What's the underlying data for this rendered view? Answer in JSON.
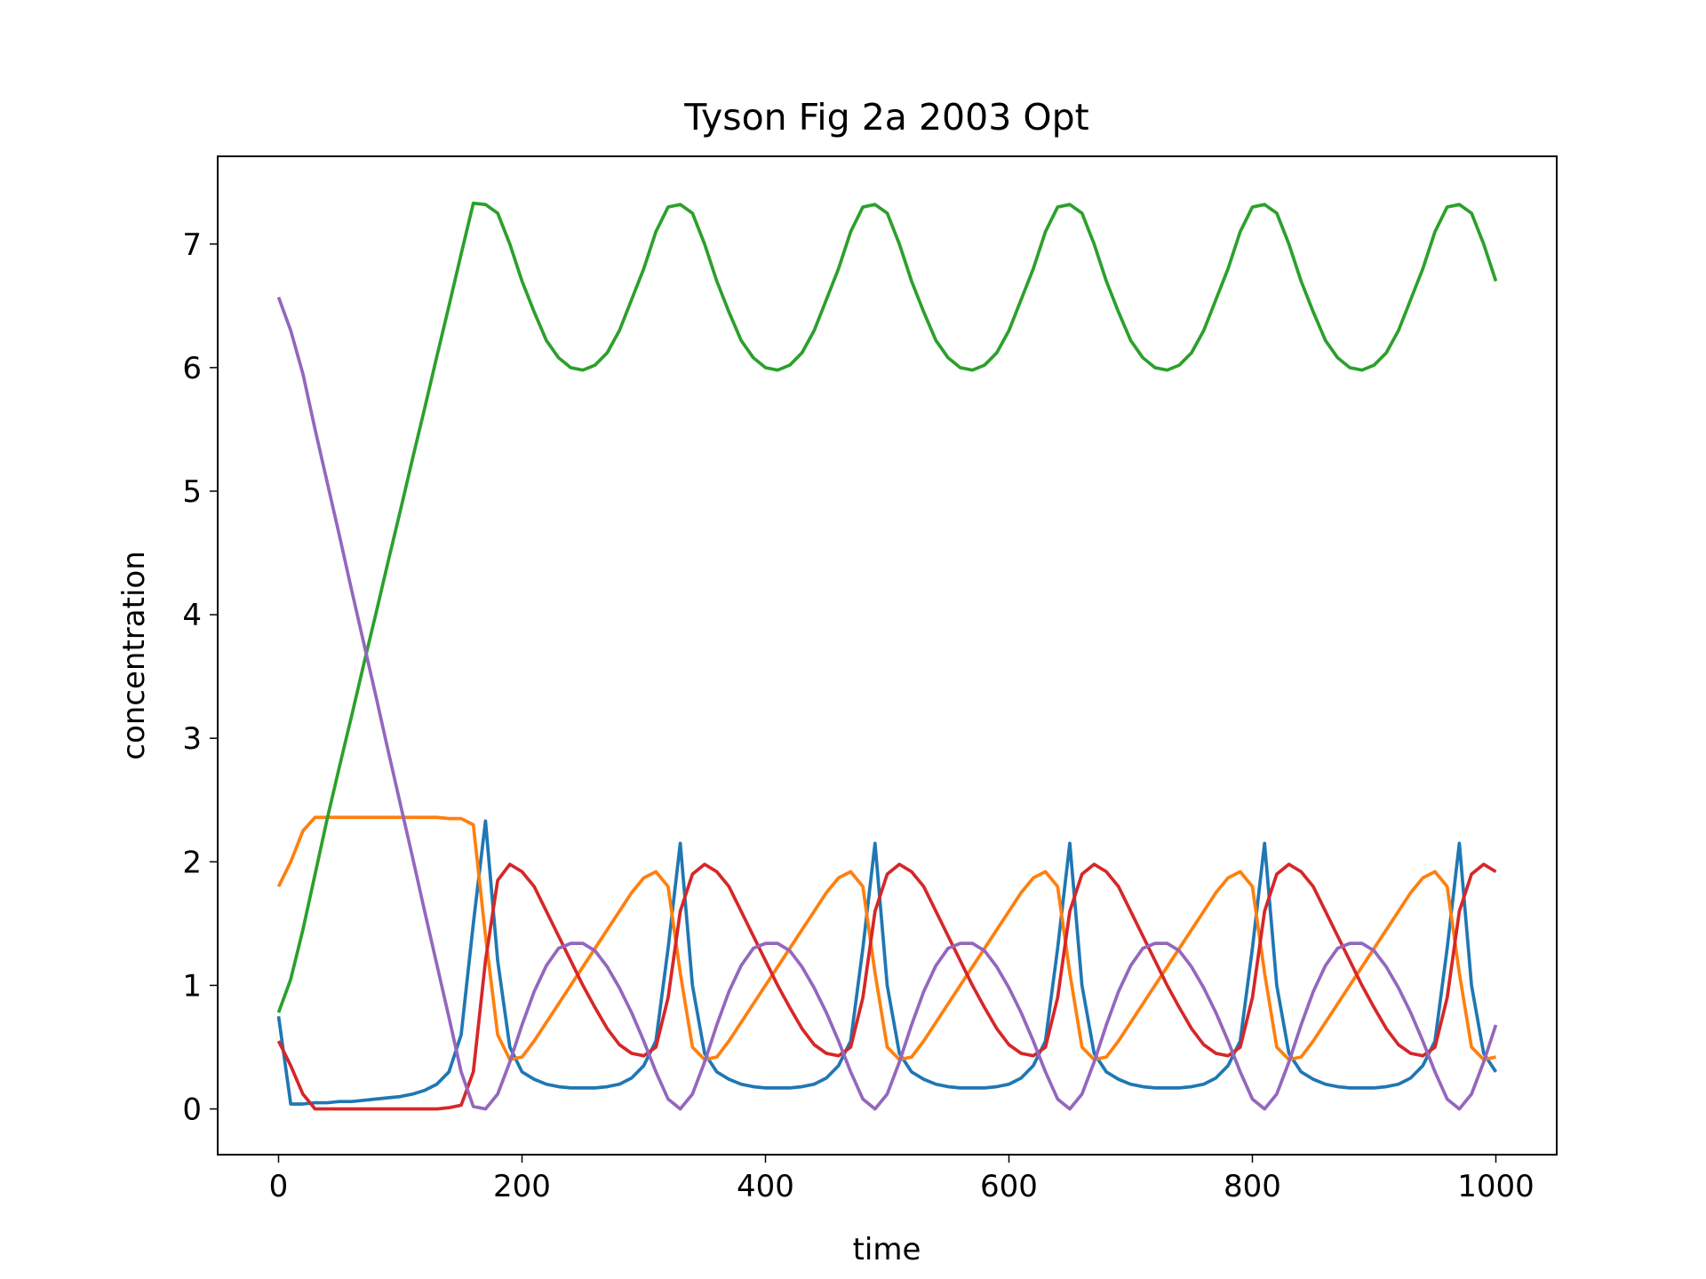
{
  "chart_data": {
    "type": "line",
    "title": "Tyson Fig 2a 2003 Opt",
    "xlabel": "time",
    "ylabel": "concentration",
    "x": [
      0,
      10,
      20,
      30,
      40,
      50,
      60,
      70,
      80,
      90,
      100,
      110,
      120,
      130,
      140,
      150,
      160,
      170,
      180,
      190,
      200,
      210,
      220,
      230,
      240,
      250,
      260,
      270,
      280,
      290,
      300,
      310,
      320,
      330,
      340,
      350,
      360,
      370,
      380,
      390,
      400,
      410,
      420,
      430,
      440,
      450,
      460,
      470,
      480,
      490,
      500,
      510,
      520,
      530,
      540,
      550,
      560,
      570,
      580,
      590,
      600,
      610,
      620,
      630,
      640,
      650,
      660,
      670,
      680,
      690,
      700,
      710,
      720,
      730,
      740,
      750,
      760,
      770,
      780,
      790,
      800,
      810,
      820,
      830,
      840,
      850,
      860,
      870,
      880,
      890,
      900,
      910,
      920,
      930,
      940,
      950,
      960,
      970,
      980,
      990,
      1000
    ],
    "series": [
      {
        "color": "#1f77b4",
        "values": [
          0.75,
          0.04,
          0.04,
          0.05,
          0.05,
          0.06,
          0.06,
          0.07,
          0.08,
          0.09,
          0.1,
          0.12,
          0.15,
          0.2,
          0.3,
          0.6,
          1.5,
          2.33,
          1.2,
          0.5,
          0.3,
          0.24,
          0.2,
          0.18,
          0.17,
          0.17,
          0.17,
          0.18,
          0.2,
          0.25,
          0.35,
          0.55,
          1.3,
          2.15,
          1.0,
          0.45,
          0.3,
          0.24,
          0.2,
          0.18,
          0.17,
          0.17,
          0.17,
          0.18,
          0.2,
          0.25,
          0.35,
          0.55,
          1.3,
          2.15,
          1.0,
          0.45,
          0.3,
          0.24,
          0.2,
          0.18,
          0.17,
          0.17,
          0.17,
          0.18,
          0.2,
          0.25,
          0.35,
          0.55,
          1.3,
          2.15,
          1.0,
          0.45,
          0.3,
          0.24,
          0.2,
          0.18,
          0.17,
          0.17,
          0.17,
          0.18,
          0.2,
          0.25,
          0.35,
          0.55,
          1.3,
          2.15,
          1.0,
          0.45,
          0.3,
          0.24,
          0.2,
          0.18,
          0.17,
          0.17,
          0.17,
          0.18,
          0.2,
          0.25,
          0.35,
          0.55,
          1.3,
          2.15,
          1.0,
          0.45,
          0.3
        ]
      },
      {
        "color": "#ff7f0e",
        "values": [
          1.8,
          2.0,
          2.25,
          2.36,
          2.36,
          2.36,
          2.36,
          2.36,
          2.36,
          2.36,
          2.36,
          2.36,
          2.36,
          2.36,
          2.35,
          2.35,
          2.3,
          1.4,
          0.6,
          0.4,
          0.42,
          0.55,
          0.7,
          0.85,
          1.0,
          1.15,
          1.3,
          1.45,
          1.6,
          1.75,
          1.87,
          1.92,
          1.8,
          1.1,
          0.5,
          0.4,
          0.42,
          0.55,
          0.7,
          0.85,
          1.0,
          1.15,
          1.3,
          1.45,
          1.6,
          1.75,
          1.87,
          1.92,
          1.8,
          1.1,
          0.5,
          0.4,
          0.42,
          0.55,
          0.7,
          0.85,
          1.0,
          1.15,
          1.3,
          1.45,
          1.6,
          1.75,
          1.87,
          1.92,
          1.8,
          1.1,
          0.5,
          0.4,
          0.42,
          0.55,
          0.7,
          0.85,
          1.0,
          1.15,
          1.3,
          1.45,
          1.6,
          1.75,
          1.87,
          1.92,
          1.8,
          1.1,
          0.5,
          0.4,
          0.42,
          0.55,
          0.7,
          0.85,
          1.0,
          1.15,
          1.3,
          1.45,
          1.6,
          1.75,
          1.87,
          1.92,
          1.8,
          1.1,
          0.5,
          0.4,
          0.42
        ]
      },
      {
        "color": "#2ca02c",
        "values": [
          0.78,
          1.05,
          1.45,
          1.9,
          2.35,
          2.77,
          3.18,
          3.6,
          4.01,
          4.43,
          4.84,
          5.26,
          5.67,
          6.09,
          6.5,
          6.92,
          7.33,
          7.32,
          7.25,
          7.0,
          6.7,
          6.45,
          6.22,
          6.08,
          6.0,
          5.98,
          6.02,
          6.12,
          6.3,
          6.55,
          6.8,
          7.1,
          7.3,
          7.32,
          7.25,
          7.0,
          6.7,
          6.45,
          6.22,
          6.08,
          6.0,
          5.98,
          6.02,
          6.12,
          6.3,
          6.55,
          6.8,
          7.1,
          7.3,
          7.32,
          7.25,
          7.0,
          6.7,
          6.45,
          6.22,
          6.08,
          6.0,
          5.98,
          6.02,
          6.12,
          6.3,
          6.55,
          6.8,
          7.1,
          7.3,
          7.32,
          7.25,
          7.0,
          6.7,
          6.45,
          6.22,
          6.08,
          6.0,
          5.98,
          6.02,
          6.12,
          6.3,
          6.55,
          6.8,
          7.1,
          7.3,
          7.32,
          7.25,
          7.0,
          6.7,
          6.45,
          6.22,
          6.08,
          6.0,
          5.98,
          6.02,
          6.12,
          6.3,
          6.55,
          6.8,
          7.1,
          7.3,
          7.32,
          7.25,
          7.0,
          6.7
        ]
      },
      {
        "color": "#d62728",
        "values": [
          0.55,
          0.35,
          0.12,
          0.0,
          0.0,
          0.0,
          0.0,
          0.0,
          0.0,
          0.0,
          0.0,
          0.0,
          0.0,
          0.0,
          0.01,
          0.03,
          0.3,
          1.2,
          1.85,
          1.98,
          1.92,
          1.8,
          1.6,
          1.4,
          1.2,
          1.0,
          0.82,
          0.65,
          0.52,
          0.45,
          0.43,
          0.5,
          0.9,
          1.6,
          1.9,
          1.98,
          1.92,
          1.8,
          1.6,
          1.4,
          1.2,
          1.0,
          0.82,
          0.65,
          0.52,
          0.45,
          0.43,
          0.5,
          0.9,
          1.6,
          1.9,
          1.98,
          1.92,
          1.8,
          1.6,
          1.4,
          1.2,
          1.0,
          0.82,
          0.65,
          0.52,
          0.45,
          0.43,
          0.5,
          0.9,
          1.6,
          1.9,
          1.98,
          1.92,
          1.8,
          1.6,
          1.4,
          1.2,
          1.0,
          0.82,
          0.65,
          0.52,
          0.45,
          0.43,
          0.5,
          0.9,
          1.6,
          1.9,
          1.98,
          1.92,
          1.8,
          1.6,
          1.4,
          1.2,
          1.0,
          0.82,
          0.65,
          0.52,
          0.45,
          0.43,
          0.5,
          0.9,
          1.6,
          1.9,
          1.98,
          1.92
        ]
      },
      {
        "color": "#9467bd",
        "values": [
          6.57,
          6.3,
          5.95,
          5.5,
          5.07,
          4.64,
          4.2,
          3.77,
          3.34,
          2.9,
          2.47,
          2.04,
          1.6,
          1.17,
          0.74,
          0.3,
          0.02,
          0.0,
          0.12,
          0.38,
          0.68,
          0.95,
          1.16,
          1.3,
          1.34,
          1.34,
          1.28,
          1.15,
          0.98,
          0.78,
          0.55,
          0.3,
          0.08,
          0.0,
          0.12,
          0.38,
          0.68,
          0.95,
          1.16,
          1.3,
          1.34,
          1.34,
          1.28,
          1.15,
          0.98,
          0.78,
          0.55,
          0.3,
          0.08,
          0.0,
          0.12,
          0.38,
          0.68,
          0.95,
          1.16,
          1.3,
          1.34,
          1.34,
          1.28,
          1.15,
          0.98,
          0.78,
          0.55,
          0.3,
          0.08,
          0.0,
          0.12,
          0.38,
          0.68,
          0.95,
          1.16,
          1.3,
          1.34,
          1.34,
          1.28,
          1.15,
          0.98,
          0.78,
          0.55,
          0.3,
          0.08,
          0.0,
          0.12,
          0.38,
          0.68,
          0.95,
          1.16,
          1.3,
          1.34,
          1.34,
          1.28,
          1.15,
          0.98,
          0.78,
          0.55,
          0.3,
          0.08,
          0.0,
          0.12,
          0.38,
          0.68
        ]
      }
    ],
    "xlim": [
      -50,
      1050
    ],
    "xticks": [
      0,
      200,
      400,
      600,
      800,
      1000
    ],
    "ylim": [
      -0.37,
      7.71
    ],
    "yticks": [
      0,
      1,
      2,
      3,
      4,
      5,
      6,
      7
    ],
    "grid": false
  }
}
